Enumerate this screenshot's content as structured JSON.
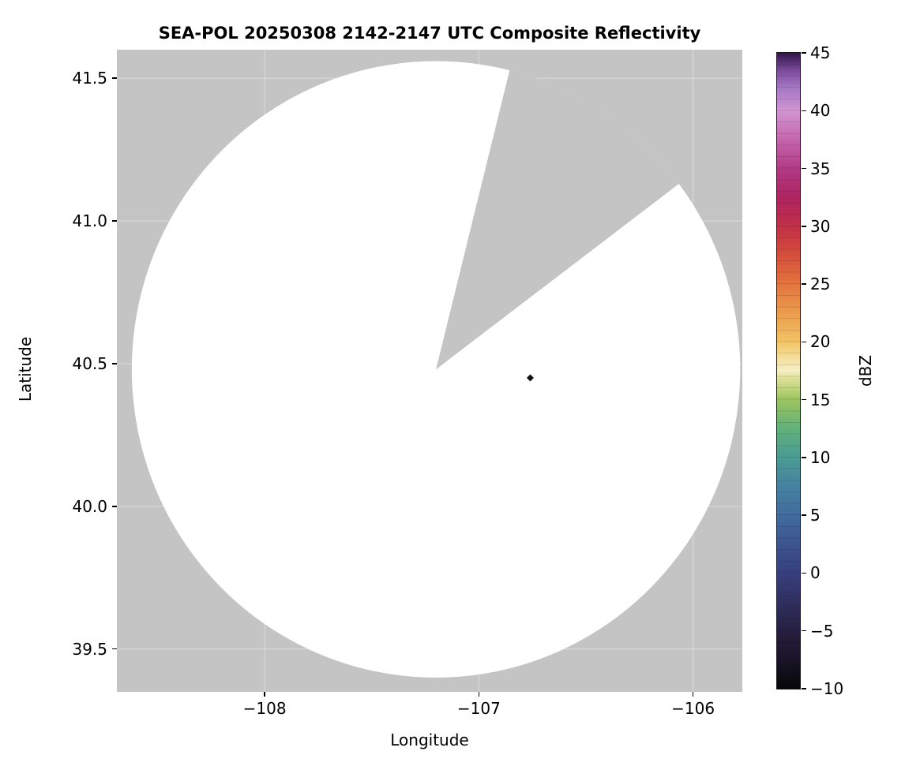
{
  "chart_data": {
    "type": "heatmap",
    "title": "SEA-POL 20250308 2142-2147 UTC Composite Reflectivity",
    "xlabel": "Longitude",
    "ylabel": "Latitude",
    "xlim": [
      -108.69,
      -105.77
    ],
    "ylim": [
      39.35,
      41.6
    ],
    "x_ticks": [
      -108,
      -107,
      -106
    ],
    "y_ticks": [
      41.5,
      41.0,
      40.5,
      40.0,
      39.5
    ],
    "grid": true,
    "background_outside_coverage": "#c4c4c4",
    "coverage_fill": "#ffffff",
    "radar_coverage": {
      "center_lon": -107.2,
      "center_lat": 40.48,
      "radius_lon_deg": 1.42,
      "radius_lat_deg": 1.08,
      "missing_sector_azimuth_deg": [
        14,
        53
      ]
    },
    "echoes": [
      {
        "lon": -106.76,
        "lat": 40.45,
        "dbz": -10,
        "color": "#111111"
      }
    ],
    "colorbar": {
      "label": "dBZ",
      "min": -10,
      "max": 45,
      "ticks": [
        45,
        40,
        35,
        30,
        25,
        20,
        15,
        10,
        5,
        0,
        -5,
        -10
      ],
      "stops": [
        {
          "value": -10,
          "color": "#070709"
        },
        {
          "value": -7.5,
          "color": "#191427"
        },
        {
          "value": -5,
          "color": "#261f41"
        },
        {
          "value": -2.5,
          "color": "#30305f"
        },
        {
          "value": 0,
          "color": "#373f7e"
        },
        {
          "value": 2.5,
          "color": "#3d5591"
        },
        {
          "value": 5,
          "color": "#426b9d"
        },
        {
          "value": 7.5,
          "color": "#4682a0"
        },
        {
          "value": 10,
          "color": "#4a9b94"
        },
        {
          "value": 12.5,
          "color": "#62b17b"
        },
        {
          "value": 15,
          "color": "#9cc45f"
        },
        {
          "value": 17,
          "color": "#e4e39e"
        },
        {
          "value": 17.5,
          "color": "#f4efc6"
        },
        {
          "value": 19,
          "color": "#f4d88d"
        },
        {
          "value": 20,
          "color": "#f2c364"
        },
        {
          "value": 22.5,
          "color": "#eb9c4e"
        },
        {
          "value": 25,
          "color": "#e3743e"
        },
        {
          "value": 27.5,
          "color": "#d54e3b"
        },
        {
          "value": 30,
          "color": "#c12f47"
        },
        {
          "value": 32.5,
          "color": "#ae2460"
        },
        {
          "value": 35,
          "color": "#b13a85"
        },
        {
          "value": 37.5,
          "color": "#c566ac"
        },
        {
          "value": 40,
          "color": "#d295d2"
        },
        {
          "value": 42,
          "color": "#a577c4"
        },
        {
          "value": 43.5,
          "color": "#7a4a99"
        },
        {
          "value": 45,
          "color": "#31164a"
        }
      ]
    }
  }
}
